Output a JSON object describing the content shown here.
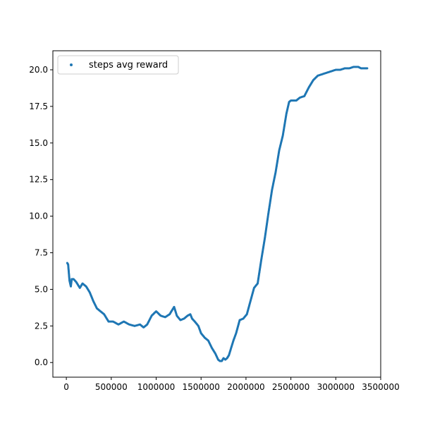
{
  "chart_data": {
    "type": "scatter",
    "title": "",
    "xlabel": "",
    "ylabel": "",
    "xlim": [
      -150000,
      3500000
    ],
    "ylim": [
      -1.0,
      21.3
    ],
    "xticks": [
      0,
      500000,
      1000000,
      1500000,
      2000000,
      2500000,
      3000000,
      3500000
    ],
    "xtick_labels": [
      "0",
      "500000",
      "1000000",
      "1500000",
      "2000000",
      "2500000",
      "3000000",
      "3500000"
    ],
    "yticks": [
      0.0,
      2.5,
      5.0,
      7.5,
      10.0,
      12.5,
      15.0,
      17.5,
      20.0
    ],
    "ytick_labels": [
      "0.0",
      "2.5",
      "5.0",
      "7.5",
      "10.0",
      "12.5",
      "15.0",
      "17.5",
      "20.0"
    ],
    "grid": false,
    "legend_position": "top-left",
    "series": [
      {
        "name": "steps avg reward",
        "color": "#1f77b4",
        "marker": "dot",
        "x": [
          10000,
          20000,
          35000,
          50000,
          60000,
          80000,
          110000,
          150000,
          180000,
          220000,
          260000,
          300000,
          340000,
          380000,
          420000,
          470000,
          520000,
          580000,
          640000,
          700000,
          760000,
          820000,
          860000,
          900000,
          950000,
          1000000,
          1050000,
          1100000,
          1150000,
          1180000,
          1200000,
          1230000,
          1270000,
          1310000,
          1350000,
          1380000,
          1400000,
          1430000,
          1470000,
          1500000,
          1540000,
          1580000,
          1620000,
          1660000,
          1690000,
          1710000,
          1730000,
          1750000,
          1770000,
          1790000,
          1810000,
          1830000,
          1860000,
          1890000,
          1930000,
          1970000,
          2010000,
          2050000,
          2090000,
          2130000,
          2170000,
          2210000,
          2250000,
          2290000,
          2330000,
          2370000,
          2410000,
          2450000,
          2480000,
          2500000,
          2530000,
          2560000,
          2600000,
          2650000,
          2700000,
          2750000,
          2800000,
          2850000,
          2900000,
          2950000,
          3000000,
          3050000,
          3100000,
          3150000,
          3200000,
          3250000,
          3280000,
          3300000,
          3330000,
          3350000
        ],
        "y": [
          6.8,
          6.7,
          5.6,
          5.2,
          5.7,
          5.7,
          5.5,
          5.1,
          5.4,
          5.2,
          4.8,
          4.2,
          3.7,
          3.5,
          3.3,
          2.8,
          2.8,
          2.6,
          2.8,
          2.6,
          2.5,
          2.6,
          2.4,
          2.6,
          3.2,
          3.5,
          3.2,
          3.1,
          3.3,
          3.6,
          3.8,
          3.2,
          2.9,
          3.0,
          3.2,
          3.3,
          3.0,
          2.8,
          2.5,
          2.0,
          1.7,
          1.5,
          1.0,
          0.6,
          0.2,
          0.1,
          0.1,
          0.3,
          0.2,
          0.3,
          0.5,
          0.9,
          1.5,
          2.0,
          2.9,
          3.0,
          3.3,
          4.2,
          5.1,
          5.4,
          7.0,
          8.5,
          10.2,
          11.8,
          13.0,
          14.5,
          15.5,
          17.0,
          17.8,
          17.9,
          17.9,
          17.9,
          18.1,
          18.2,
          18.8,
          19.3,
          19.6,
          19.7,
          19.8,
          19.9,
          20.0,
          20.0,
          20.1,
          20.1,
          20.2,
          20.2,
          20.1,
          20.1,
          20.1,
          20.1
        ]
      }
    ]
  }
}
